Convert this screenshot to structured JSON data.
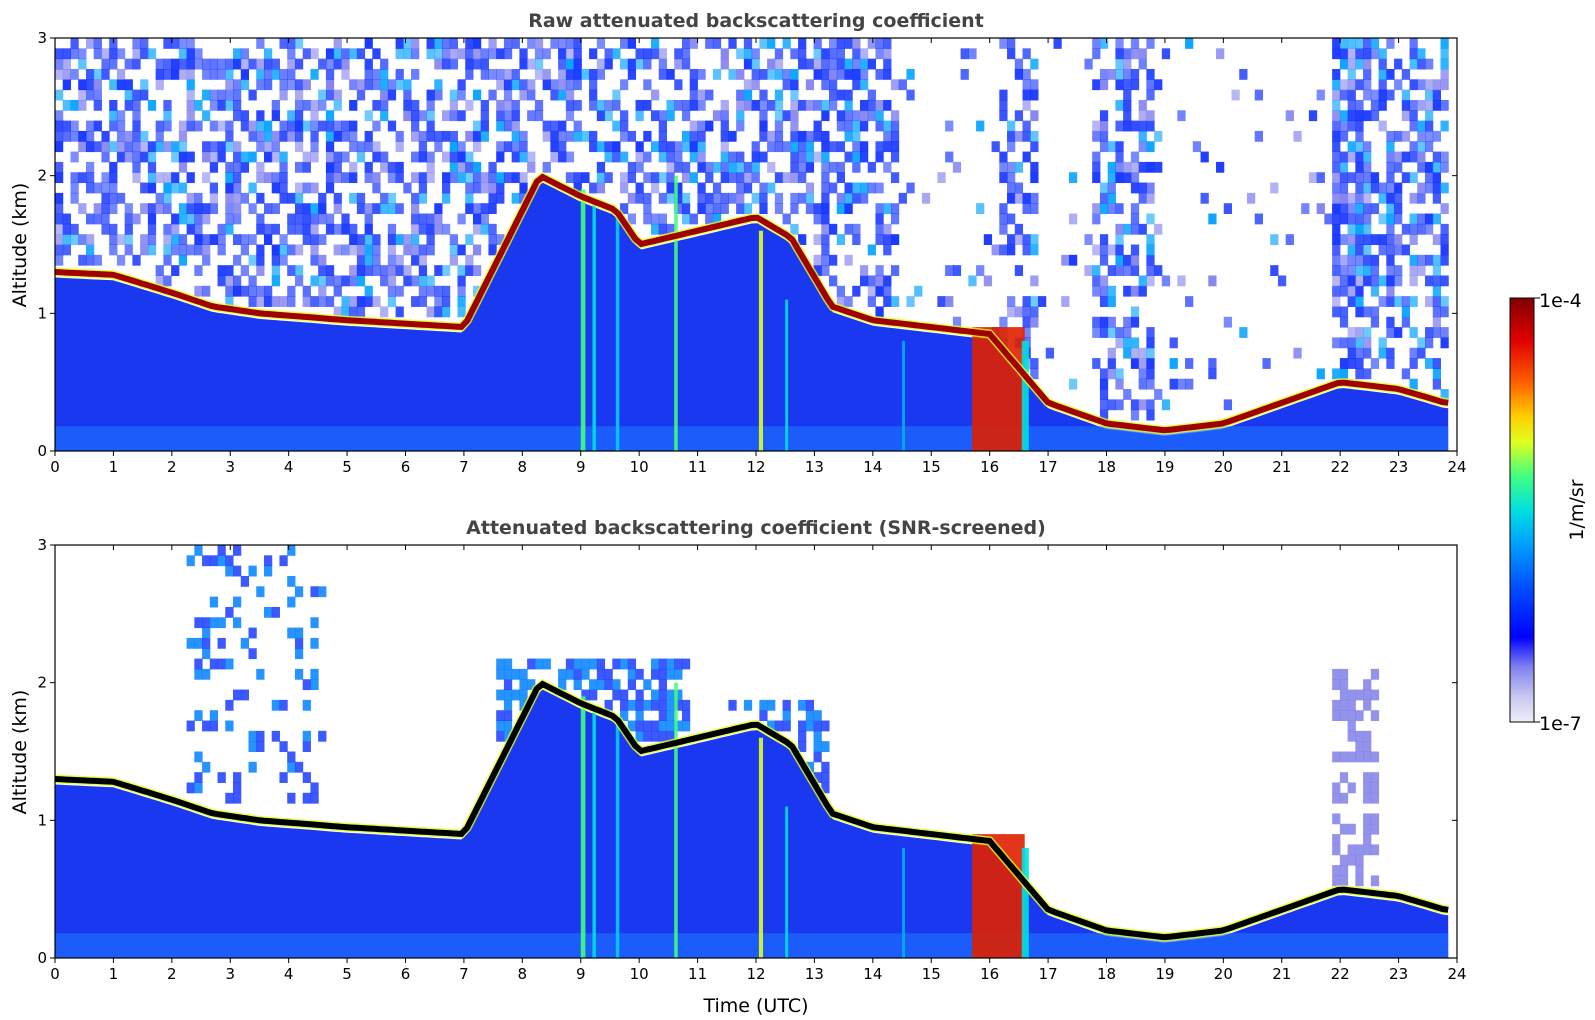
{
  "chart_data": [
    {
      "type": "heatmap",
      "title": "Raw attenuated backscattering coefficient",
      "ylabel": "Altitude (km)",
      "xlabel": "",
      "xlim": [
        0,
        24
      ],
      "ylim": [
        0,
        3
      ],
      "xticks": [
        "0",
        "1",
        "2",
        "3",
        "4",
        "5",
        "6",
        "7",
        "8",
        "9",
        "10",
        "11",
        "12",
        "13",
        "14",
        "15",
        "16",
        "17",
        "18",
        "19",
        "20",
        "21",
        "22",
        "23",
        "24"
      ],
      "yticks": [
        "0",
        "1",
        "2",
        "3"
      ],
      "screened": false,
      "layer_top_km": {
        "x": [
          0,
          1,
          2,
          2.7,
          3.5,
          5,
          7,
          8.3,
          9,
          9.6,
          10,
          10.5,
          11,
          12,
          12.6,
          13.3,
          14,
          15,
          16,
          17,
          18,
          19,
          20,
          21,
          22,
          23,
          23.8
        ],
        "y": [
          1.3,
          1.28,
          1.15,
          1.05,
          1.0,
          0.95,
          0.9,
          2.0,
          1.85,
          1.75,
          1.5,
          1.55,
          1.6,
          1.7,
          1.55,
          1.05,
          0.95,
          0.9,
          0.85,
          0.35,
          0.2,
          0.15,
          0.2,
          0.35,
          0.5,
          0.45,
          0.35
        ]
      }
    },
    {
      "type": "heatmap",
      "title": "Attenuated backscattering coefficient (SNR-screened)",
      "ylabel": "Altitude (km)",
      "xlabel": "Time (UTC)",
      "xlim": [
        0,
        24
      ],
      "ylim": [
        0,
        3
      ],
      "xticks": [
        "0",
        "1",
        "2",
        "3",
        "4",
        "5",
        "6",
        "7",
        "8",
        "9",
        "10",
        "11",
        "12",
        "13",
        "14",
        "15",
        "16",
        "17",
        "18",
        "19",
        "20",
        "21",
        "22",
        "23",
        "24"
      ],
      "yticks": [
        "0",
        "1",
        "2",
        "3"
      ],
      "screened": true,
      "layer_top_km": {
        "x": [
          0,
          1,
          2,
          2.7,
          3.5,
          5,
          7,
          8.3,
          9,
          9.6,
          10,
          10.5,
          11,
          12,
          12.6,
          13.3,
          14,
          15,
          16,
          17,
          18,
          19,
          20,
          21,
          22,
          23,
          23.8
        ],
        "y": [
          1.3,
          1.28,
          1.15,
          1.05,
          1.0,
          0.95,
          0.9,
          2.0,
          1.85,
          1.75,
          1.5,
          1.55,
          1.6,
          1.7,
          1.55,
          1.05,
          0.95,
          0.9,
          0.85,
          0.35,
          0.2,
          0.15,
          0.2,
          0.35,
          0.5,
          0.45,
          0.35
        ]
      }
    }
  ],
  "colorbar": {
    "label": "1/m/sr",
    "max_label": "1e-4",
    "min_label": "1e-7",
    "scale": "log",
    "colormap": [
      "#e8e8f8",
      "#c8c8f0",
      "#0000ff",
      "#0050ff",
      "#00a0ff",
      "#00e0e0",
      "#40ff80",
      "#e0ff20",
      "#ffd000",
      "#ff6000",
      "#e00000",
      "#800000"
    ]
  }
}
